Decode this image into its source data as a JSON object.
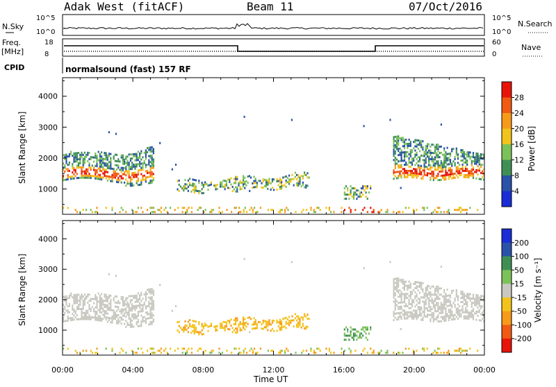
{
  "header": {
    "station": "Adak West (fitACF)",
    "beam": "Beam 11",
    "date": "07/Oct/2016"
  },
  "colors": {
    "power_scale": [
      "#1a2dd6",
      "#2a52a8",
      "#3f8f55",
      "#7cc25a",
      "#f2c31b",
      "#f79a1a",
      "#f05a12",
      "#e8140a"
    ],
    "velocity_scale": [
      "#e8140a",
      "#f05a12",
      "#f79a1a",
      "#f2c31b",
      "#c8c8c0",
      "#7cc25a",
      "#3f8f55",
      "#2a52a8",
      "#1a2dd6"
    ],
    "ground_scatter": "#c8c8c0"
  },
  "top_panels": {
    "nsky_label": "N.Sky",
    "nsky_ticks": [
      "10^5",
      "10^0"
    ],
    "nsearch_label": "N.Search",
    "nsearch_ticks": [
      "10^5",
      "10^0"
    ],
    "freq_label": "Freq.",
    "freq_unit": "[MHz]",
    "freq_ticks": [
      "18",
      "8"
    ],
    "nave_label": "Nave",
    "nave_ticks": [
      "60",
      "0"
    ],
    "cpid_label": "CPID",
    "cpid_text": "normalsound (fast) 157 RF"
  },
  "chart_data": [
    {
      "type": "heatmap",
      "panel": "power",
      "ylabel": "Slant Range [km]",
      "ylim": [
        180,
        4600
      ],
      "yticks": [
        "4000",
        "3000",
        "2000",
        "1000"
      ],
      "xlim": [
        "00:00",
        "24:00"
      ],
      "colorbar_label": "Power [dB]",
      "colorbar_ticks": [
        "28",
        "24",
        "20",
        "16",
        "12",
        "8",
        "4"
      ],
      "colorbar_range": [
        0,
        32
      ],
      "regions": [
        {
          "t0": 0.0,
          "t1": 5.2,
          "r0": 1200,
          "r1": 2200,
          "core": 1450,
          "level": "high"
        },
        {
          "t0": 6.5,
          "t1": 14.0,
          "r0": 850,
          "r1": 1450,
          "level": "mid"
        },
        {
          "t0": 16.0,
          "t1": 17.5,
          "r0": 650,
          "r1": 1100,
          "level": "mid"
        },
        {
          "t0": 18.8,
          "t1": 24.0,
          "r0": 1200,
          "r1": 2700,
          "core": 1500,
          "level": "high"
        },
        {
          "t0": 0.0,
          "t1": 24.0,
          "r0": 220,
          "r1": 400,
          "level": "low"
        }
      ]
    },
    {
      "type": "heatmap",
      "panel": "velocity",
      "ylabel": "Slant Range [km]",
      "ylim": [
        180,
        4600
      ],
      "yticks": [
        "4000",
        "3000",
        "2000",
        "1000"
      ],
      "xlim": [
        "00:00",
        "24:00"
      ],
      "xlabel": "Time UT",
      "xticks": [
        "00:00",
        "04:00",
        "08:00",
        "12:00",
        "16:00",
        "20:00",
        "00:00"
      ],
      "colorbar_label": "Velocity [m s⁻¹]",
      "colorbar_ticks": [
        "200",
        "100",
        "50",
        "15",
        "-15",
        "-50",
        "-100",
        "-200"
      ],
      "colorbar_range": [
        -250,
        250
      ]
    }
  ]
}
